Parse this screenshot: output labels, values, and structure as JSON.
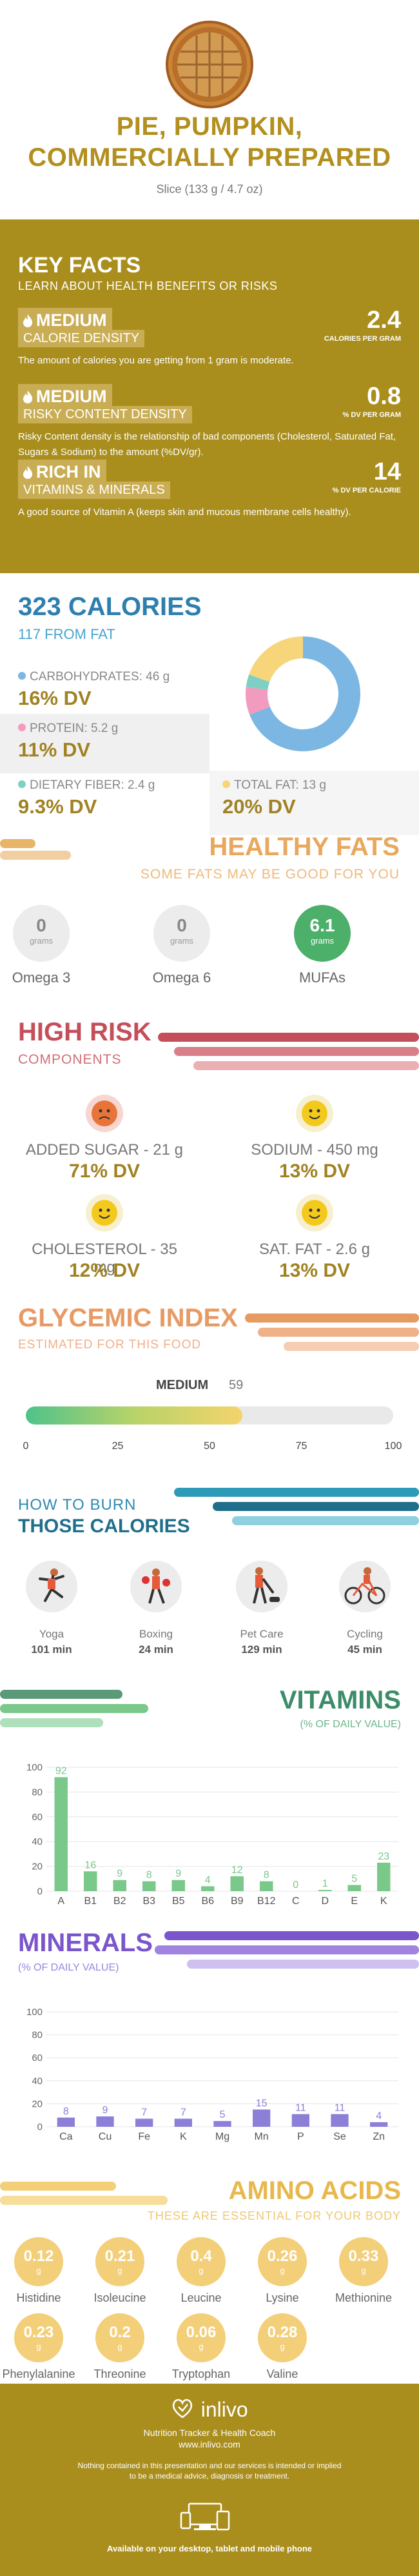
{
  "header": {
    "title_line1": "PIE, PUMPKIN,",
    "title_line2": "COMMERCIALLY PREPARED",
    "serving": "Slice (133 g / 4.7 oz)",
    "image_icon": "pumpkin-pie-image"
  },
  "key_facts": {
    "title": "KEY FACTS",
    "subtitle": "LEARN ABOUT HEALTH BENEFITS OR RISKS",
    "items": [
      {
        "icon": "flame-icon",
        "level": "MEDIUM",
        "label": "CALORIE DENSITY",
        "value": "2.4",
        "unit": "CALORIES PER GRAM",
        "desc": "The amount of calories you are getting from 1 gram is moderate."
      },
      {
        "icon": "flame-icon",
        "level": "MEDIUM",
        "label": "RISKY CONTENT DENSITY",
        "value": "0.8",
        "unit": "% DV PER GRAM",
        "desc": "Risky Content density is the relationship of bad components (Cholesterol, Saturated Fat, Sugars & Sodium) to the amount (%DV/gr)."
      },
      {
        "icon": "flame-icon",
        "level": "RICH  IN",
        "label": "VITAMINS & MINERALS",
        "value": "14",
        "unit": "% DV PER CALORIE",
        "desc": "A good source of Vitamin A (keeps skin and mucous membrane cells healthy)."
      }
    ]
  },
  "calories": {
    "title": "323 CALORIES",
    "from_fat": "117 FROM FAT",
    "nutrients": [
      {
        "label": "CARBOHYDRATES: 46 g",
        "dv": "16% DV",
        "color": "#7bb7e2"
      },
      {
        "label": "PROTEIN: 5.2 g",
        "dv": "11% DV",
        "color": "#f19bbf"
      },
      {
        "label": "DIETARY FIBER: 2.4 g",
        "dv": "9.3% DV",
        "color": "#7fd0c4"
      },
      {
        "label": "TOTAL FAT: 13 g",
        "dv": "20% DV",
        "color": "#f7d57b"
      }
    ],
    "donut": [
      {
        "name": "carbohydrates",
        "value": 46,
        "color": "#7bb7e2"
      },
      {
        "name": "protein",
        "value": 5.2,
        "color": "#f19bbf"
      },
      {
        "name": "fiber",
        "value": 2.4,
        "color": "#7fd0c4"
      },
      {
        "name": "fat",
        "value": 13,
        "color": "#f7d57b"
      }
    ]
  },
  "healthy_fats": {
    "title": "HEALTHY FATS",
    "subtitle": "SOME FATS MAY BE GOOD FOR YOU",
    "items": [
      {
        "value": "0",
        "unit": "grams",
        "label": "Omega 3",
        "highlight": false
      },
      {
        "value": "0",
        "unit": "grams",
        "label": "Omega 6",
        "highlight": false
      },
      {
        "value": "6.1",
        "unit": "grams",
        "label": "MUFAs",
        "highlight": true
      }
    ]
  },
  "high_risk": {
    "title": "HIGH RISK",
    "subtitle": "COMPONENTS",
    "items": [
      {
        "label": "ADDED SUGAR - 21 g",
        "dv": "71% DV",
        "face": "sad-face-icon"
      },
      {
        "label": "SODIUM - 450 mg",
        "dv": "13% DV",
        "face": "happy-face-icon"
      },
      {
        "label": "CHOLESTEROL - 35 mg",
        "dv": "12% DV",
        "face": "happy-face-icon"
      },
      {
        "label": "SAT. FAT - 2.6 g",
        "dv": "13% DV",
        "face": "happy-face-icon"
      }
    ]
  },
  "glycemic": {
    "title": "GLYCEMIC INDEX",
    "subtitle": "ESTIMATED FOR THIS FOOD",
    "level": "MEDIUM",
    "value": "59",
    "value_num": 59,
    "ticks": [
      "0",
      "25",
      "50",
      "75",
      "100"
    ]
  },
  "burn": {
    "title1": "HOW TO BURN",
    "title2": "THOSE CALORIES",
    "activities": [
      {
        "label": "Yoga",
        "time": "101 min",
        "icon": "yoga-icon"
      },
      {
        "label": "Boxing",
        "time": "24 min",
        "icon": "boxing-icon"
      },
      {
        "label": "Pet Care",
        "time": "129 min",
        "icon": "dog-walking-icon"
      },
      {
        "label": "Cycling",
        "time": "45 min",
        "icon": "cycling-icon"
      }
    ]
  },
  "vitamins": {
    "title": "VITAMINS",
    "subtitle": "(% OF DAILY VALUE)"
  },
  "minerals": {
    "title": "MINERALS",
    "subtitle": "(% OF DAILY VALUE)"
  },
  "chart_data": [
    {
      "type": "bar",
      "categories": [
        "A",
        "B1",
        "B2",
        "B3",
        "B5",
        "B6",
        "B9",
        "B12",
        "C",
        "D",
        "E",
        "K"
      ],
      "values": [
        92,
        16,
        9,
        8,
        9,
        4,
        12,
        8,
        0,
        1,
        5,
        23
      ],
      "value_labels": [
        "92",
        "16",
        "9",
        "8",
        "9",
        "4",
        "12",
        "8",
        "0",
        "1",
        "5",
        "23"
      ],
      "ylim": [
        0,
        100
      ],
      "yticks": [
        "0",
        "20",
        "40",
        "60",
        "80",
        "100"
      ],
      "color": "#7ac88a",
      "grid": true
    },
    {
      "type": "bar",
      "categories": [
        "Ca",
        "Cu",
        "Fe",
        "K",
        "Mg",
        "Mn",
        "P",
        "Se",
        "Zn"
      ],
      "values": [
        8,
        9,
        7,
        7,
        5,
        15,
        11,
        11,
        4
      ],
      "value_labels": [
        "8",
        "9",
        "7",
        "7",
        "5",
        "15",
        "11",
        "11",
        "4"
      ],
      "ylim": [
        0,
        100
      ],
      "yticks": [
        "0",
        "20",
        "40",
        "60",
        "80",
        "100"
      ],
      "color": "#8b7fd8",
      "grid": true
    }
  ],
  "amino": {
    "title": "AMINO ACIDS",
    "subtitle": "THESE ARE ESSENTIAL FOR YOUR BODY",
    "unit": "g",
    "items": [
      {
        "value": "0.12",
        "label": "Histidine"
      },
      {
        "value": "0.21",
        "label": "Isoleucine"
      },
      {
        "value": "0.4",
        "label": "Leucine"
      },
      {
        "value": "0.26",
        "label": "Lysine"
      },
      {
        "value": "0.33",
        "label": "Methionine"
      },
      {
        "value": "0.23",
        "label": "Phenylalanine"
      },
      {
        "value": "0.2",
        "label": "Threonine"
      },
      {
        "value": "0.06",
        "label": "Tryptophan"
      },
      {
        "value": "0.28",
        "label": "Valine"
      }
    ]
  },
  "footer": {
    "brand": "inlivo",
    "tagline": "Nutrition Tracker & Health Coach",
    "url": "www.inlivo.com",
    "disclaimer1": "Nothing contained in this presentation and our services is intended or implied",
    "disclaimer2": "to be a medical advice, diagnosis or treatment.",
    "available": "Available on your desktop, tablet and mobile phone"
  }
}
